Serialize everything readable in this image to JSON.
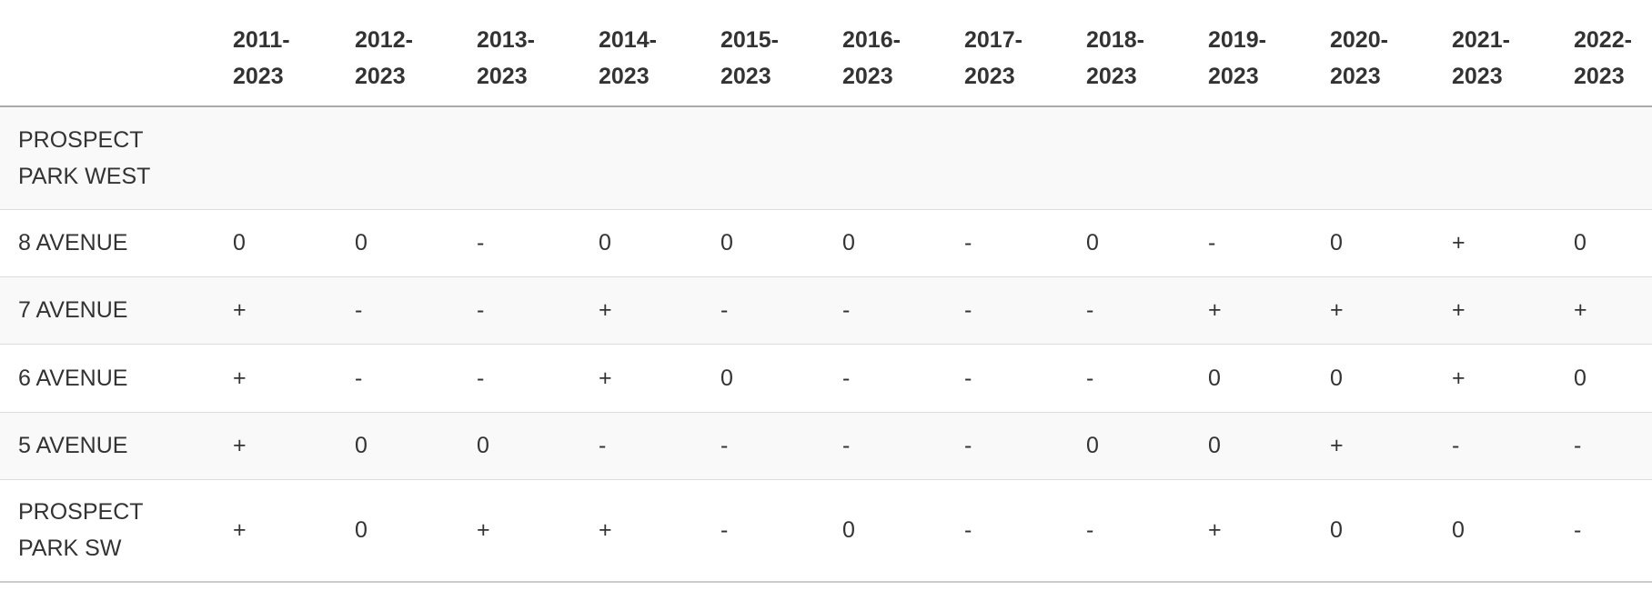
{
  "table": {
    "header": [
      "2011-2023",
      "2012-2023",
      "2013-2023",
      "2014-2023",
      "2015-2023",
      "2016-2023",
      "2017-2023",
      "2018-2023",
      "2019-2023",
      "2020-2023",
      "2021-2023",
      "2022-2023"
    ],
    "rows": [
      {
        "label": "PROSPECT PARK WEST",
        "cells": []
      },
      {
        "label": "8 AVENUE",
        "cells": [
          "0",
          "0",
          "-",
          "0",
          "0",
          "0",
          "-",
          "0",
          "-",
          "0",
          "+",
          "0"
        ]
      },
      {
        "label": "7 AVENUE",
        "cells": [
          "+",
          "-",
          "-",
          "+",
          "-",
          "-",
          "-",
          "-",
          "+",
          "+",
          "+",
          "+"
        ]
      },
      {
        "label": "6 AVENUE",
        "cells": [
          "+",
          "-",
          "-",
          "+",
          "0",
          "-",
          "-",
          "-",
          "0",
          "0",
          "+",
          "0"
        ]
      },
      {
        "label": "5 AVENUE",
        "cells": [
          "+",
          "0",
          "0",
          "-",
          "-",
          "-",
          "-",
          "0",
          "0",
          "+",
          "-",
          "-"
        ]
      },
      {
        "label": "PROSPECT PARK SW",
        "cells": [
          "+",
          "0",
          "+",
          "+",
          "-",
          "0",
          "-",
          "-",
          "+",
          "0",
          "0",
          "-"
        ]
      }
    ]
  }
}
